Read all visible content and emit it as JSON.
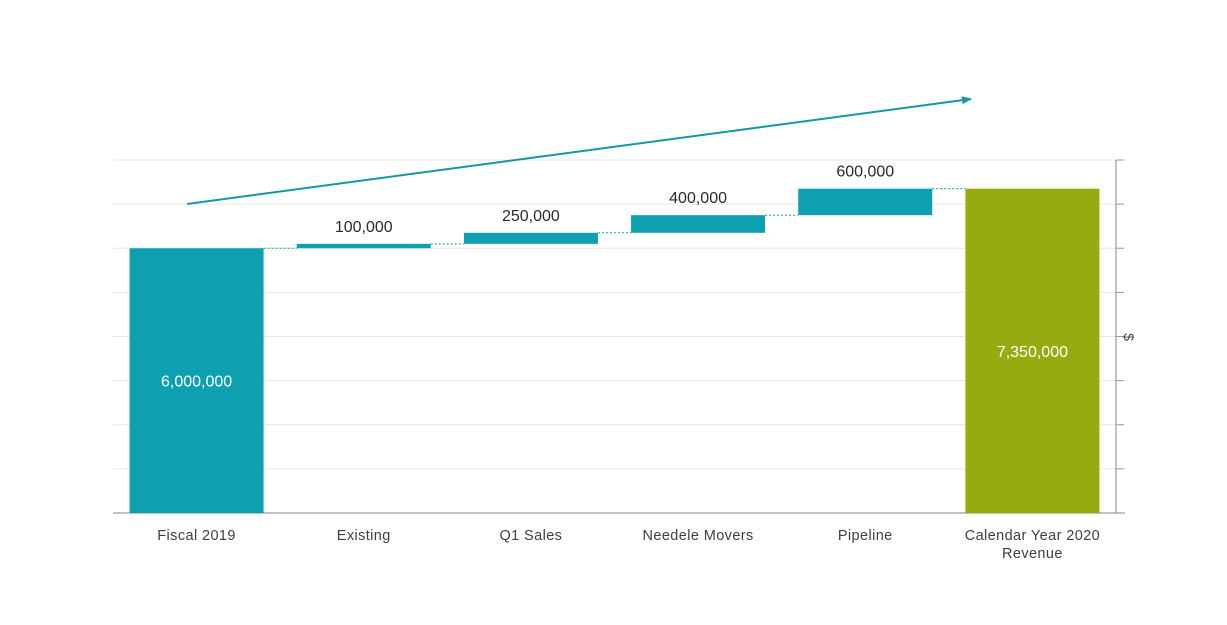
{
  "chart_data": {
    "type": "waterfall",
    "categories": [
      "Fiscal 2019",
      "Existing",
      "Q1 Sales",
      "Needele Movers",
      "Pipeline",
      "Calendar Year 2020 Revenue"
    ],
    "values": [
      6000000,
      100000,
      250000,
      400000,
      600000,
      7350000
    ],
    "value_labels": [
      "6,000,000",
      "100,000",
      "250,000",
      "400,000",
      "600,000",
      "7,350,000"
    ],
    "kinds": [
      "total",
      "increase",
      "increase",
      "increase",
      "increase",
      "total"
    ],
    "ylabel": "$",
    "ylim": [
      0,
      8000000
    ],
    "grid": true,
    "colors": {
      "start": "#0e9fb0",
      "increase": "#0e9fb0",
      "end": "#97ab10",
      "trend_arrow": "#1597a4",
      "grid": "#e6e6e6",
      "axis": "#9a9a9a"
    }
  }
}
